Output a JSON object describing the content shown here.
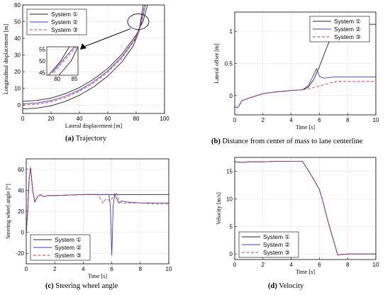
{
  "legend_labels": [
    "System ①",
    "System ②",
    "System ③"
  ],
  "colors": {
    "s1": "#222222",
    "s2": "#3a3ad6",
    "s3": "#e83535"
  },
  "captions": [
    {
      "tag": "(a)",
      "text": "Trajectory"
    },
    {
      "tag": "(b)",
      "text": "Distance from center of mass to lane centerline"
    },
    {
      "tag": "(c)",
      "text": "Steering wheel angle"
    },
    {
      "tag": "(d)",
      "text": "Velocity"
    }
  ],
  "chart_data": [
    {
      "type": "line",
      "xlabel": "Lateral displacement [m]",
      "ylabel": "Longitudinal displacement [m]",
      "xlim": [
        0,
        100
      ],
      "ylim": [
        -5,
        60
      ],
      "xticks": [
        0,
        20,
        40,
        60,
        80,
        100
      ],
      "yticks": [
        0,
        10,
        20,
        30,
        40,
        50,
        60
      ],
      "legend": "top-left",
      "series": [
        {
          "name": "System ①",
          "x": [
            0,
            10,
            20,
            30,
            40,
            50,
            60,
            70,
            80,
            85,
            88
          ],
          "y": [
            2.3,
            2.8,
            4.2,
            6.8,
            10.5,
            15.5,
            22.0,
            30.5,
            42.0,
            50.5,
            60.0
          ]
        },
        {
          "name": "System ①",
          "x": [
            0,
            10,
            20,
            30,
            40,
            50,
            60,
            70,
            78,
            82,
            85
          ],
          "y": [
            -2.3,
            -1.8,
            -0.4,
            2.2,
            5.9,
            10.9,
            17.4,
            25.9,
            35.5,
            44.0,
            60.0
          ]
        },
        {
          "name": "System ②",
          "x": [
            0,
            10,
            20,
            30,
            40,
            50,
            60,
            70,
            79,
            83.5,
            86.5
          ],
          "y": [
            0.8,
            1.3,
            2.7,
            5.3,
            9.0,
            14.0,
            20.5,
            29.0,
            39.5,
            48.5,
            60.0
          ]
        },
        {
          "name": "System ③",
          "x": [
            0,
            10,
            20,
            30,
            40,
            50,
            60,
            70,
            79,
            83,
            86
          ],
          "y": [
            0,
            0.5,
            1.9,
            4.5,
            8.2,
            13.2,
            19.7,
            28.2,
            38.8,
            48.0,
            60.0
          ]
        }
      ],
      "inset": {
        "xlim": [
          77,
          86
        ],
        "ylim": [
          44,
          56
        ],
        "xticks": [
          80,
          85
        ],
        "yticks": [
          45,
          50,
          55
        ],
        "series": [
          {
            "name": "System ①",
            "x": [
              77.5,
              81.0,
              83.5
            ],
            "y": [
              44,
              50,
              56
            ]
          },
          {
            "name": "System ①",
            "x": [
              80.5,
              84.0,
              86.0
            ],
            "y": [
              44,
              50,
              56
            ]
          },
          {
            "name": "System ②",
            "x": [
              78.5,
              82.0,
              85.0
            ],
            "y": [
              45,
              51,
              56
            ]
          },
          {
            "name": "System ③",
            "x": [
              79.0,
              82.5,
              85.5
            ],
            "y": [
              45,
              51,
              56
            ]
          }
        ]
      }
    },
    {
      "type": "line",
      "xlabel": "Time [s]",
      "ylabel": "Lateral offset [m]",
      "xlim": [
        0,
        10
      ],
      "ylim": [
        -0.3,
        1.3
      ],
      "xticks": [
        0,
        2,
        4,
        6,
        8,
        10
      ],
      "yticks": [
        0,
        0.5,
        1
      ],
      "legend": "top-right",
      "series": [
        {
          "name": "System ①",
          "x": [
            0,
            0.15,
            0.3,
            0.5,
            1,
            2,
            3,
            4,
            4.8,
            5.2,
            5.6,
            6.0,
            6.4,
            6.8,
            7.1,
            7.3,
            7.6,
            10
          ],
          "y": [
            -0.17,
            -0.19,
            -0.16,
            -0.08,
            -0.04,
            0.03,
            0.06,
            0.08,
            0.09,
            0.13,
            0.25,
            0.45,
            0.68,
            0.9,
            1.05,
            1.1,
            1.11,
            1.11
          ]
        },
        {
          "name": "System ②",
          "x": [
            0,
            0.15,
            0.3,
            0.5,
            1,
            2,
            3,
            4,
            4.8,
            5.2,
            5.5,
            5.8,
            6.0,
            6.3,
            7,
            10
          ],
          "y": [
            -0.17,
            -0.19,
            -0.16,
            -0.08,
            -0.04,
            0.03,
            0.06,
            0.08,
            0.09,
            0.15,
            0.28,
            0.42,
            0.3,
            0.27,
            0.29,
            0.29
          ]
        },
        {
          "name": "System ③",
          "x": [
            0,
            0.15,
            0.3,
            0.5,
            1,
            2,
            3,
            4,
            4.8,
            5.5,
            6,
            6.5,
            7,
            7.3,
            10
          ],
          "y": [
            -0.17,
            -0.19,
            -0.16,
            -0.08,
            -0.04,
            0.03,
            0.06,
            0.08,
            0.09,
            0.12,
            0.15,
            0.18,
            0.21,
            0.22,
            0.22
          ]
        }
      ]
    },
    {
      "type": "line",
      "xlabel": "Time [s]",
      "ylabel": "Steering wheel angle [°]",
      "xlim": [
        0,
        10
      ],
      "ylim": [
        -30,
        70
      ],
      "xticks": [
        0,
        2,
        4,
        6,
        8,
        10
      ],
      "yticks": [
        -20,
        0,
        20,
        40,
        60
      ],
      "legend": "bottom-left",
      "series": [
        {
          "name": "System ①",
          "x": [
            0,
            0.1,
            0.2,
            0.3,
            0.45,
            0.6,
            0.8,
            1.0,
            1.2,
            1.5,
            2,
            3,
            4,
            5,
            6,
            7,
            8,
            9,
            10
          ],
          "y": [
            0,
            20,
            50,
            62,
            40,
            29,
            34,
            36,
            34,
            35,
            35,
            35.5,
            36,
            36,
            36,
            36,
            36,
            36,
            36
          ]
        },
        {
          "name": "System ②",
          "x": [
            0,
            0.1,
            0.2,
            0.3,
            0.45,
            0.6,
            0.8,
            1.0,
            1.2,
            1.5,
            2,
            3,
            4,
            5,
            5.8,
            5.9,
            5.95,
            6.0,
            6.05,
            6.1,
            6.2,
            6.35,
            6.5,
            6.7,
            7,
            7.5,
            8,
            9,
            10
          ],
          "y": [
            0,
            20,
            50,
            62,
            40,
            29,
            34,
            36,
            34,
            35,
            35,
            35.5,
            36,
            36,
            36,
            25,
            0,
            -22,
            0,
            25,
            36,
            32,
            28,
            30,
            29,
            28.5,
            28,
            28,
            28
          ]
        },
        {
          "name": "System ③",
          "x": [
            0,
            0.1,
            0.2,
            0.3,
            0.45,
            0.6,
            0.8,
            1.0,
            1.2,
            1.5,
            2,
            3,
            4,
            5,
            5.4,
            5.6,
            5.9,
            6.1,
            6.3,
            6.5,
            6.7,
            7,
            7.5,
            8,
            9,
            10
          ],
          "y": [
            0,
            20,
            50,
            62,
            40,
            29,
            34,
            36,
            34,
            35,
            35,
            35.5,
            36,
            36,
            28,
            32,
            30,
            34,
            38,
            30,
            28,
            28,
            28,
            28,
            27,
            27
          ]
        }
      ]
    },
    {
      "type": "line",
      "xlabel": "Time [s]",
      "ylabel": "Velocity [m/s]",
      "xlim": [
        0,
        10
      ],
      "ylim": [
        -1,
        17.5
      ],
      "xticks": [
        0,
        2,
        4,
        6,
        8,
        10
      ],
      "yticks": [
        0,
        5,
        10,
        15
      ],
      "legend": "bottom-left",
      "series": [
        {
          "name": "System ①",
          "x": [
            0,
            0.5,
            1,
            2,
            3,
            4,
            4.8,
            5.2,
            5.6,
            6.0,
            6.2,
            6.6,
            7.0,
            7.3,
            7.5,
            8,
            10
          ],
          "y": [
            16.7,
            16.6,
            16.7,
            16.7,
            16.8,
            16.8,
            16.8,
            15.2,
            13.5,
            11.7,
            10.0,
            6.0,
            2.5,
            -0.2,
            -0.1,
            0,
            0
          ]
        },
        {
          "name": "System ②",
          "x": [
            0,
            0.5,
            1,
            2,
            3,
            4,
            4.8,
            5.2,
            5.6,
            6.0,
            6.2,
            6.6,
            7.0,
            7.3,
            7.5,
            8,
            10
          ],
          "y": [
            16.7,
            16.6,
            16.7,
            16.7,
            16.8,
            16.8,
            16.8,
            15.2,
            13.5,
            11.7,
            10.0,
            6.0,
            2.5,
            -0.2,
            -0.1,
            0,
            0
          ]
        },
        {
          "name": "System ③",
          "x": [
            0,
            0.5,
            1,
            2,
            3,
            4,
            4.8,
            5.2,
            5.6,
            6.0,
            6.2,
            6.6,
            7.0,
            7.3,
            7.5,
            8,
            10
          ],
          "y": [
            16.7,
            16.6,
            16.7,
            16.7,
            16.8,
            16.8,
            16.8,
            15.2,
            13.5,
            11.7,
            10.0,
            6.0,
            2.5,
            -0.2,
            -0.1,
            0,
            0
          ]
        }
      ]
    }
  ]
}
